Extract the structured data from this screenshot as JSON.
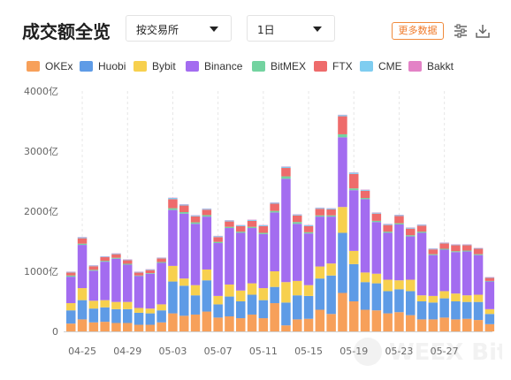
{
  "header": {
    "title": "成交额全览",
    "exchange_select": "按交易所",
    "period_select": "1日",
    "more_data_label": "更多数据"
  },
  "icons": {
    "settings": "sliders-icon",
    "download": "download-icon"
  },
  "watermark": "WEEX Bit",
  "colors": {
    "OKEx": "#f7a05a",
    "Huobi": "#5e9be6",
    "Bybit": "#f7d04e",
    "Binance": "#a36cf0",
    "BitMEX": "#73d3a0",
    "FTX": "#ee6b6b",
    "CME": "#7fcdf0",
    "Bakkt": "#e382c6"
  },
  "chart_data": {
    "type": "bar",
    "stacked": true,
    "ylim": [
      0,
      4000
    ],
    "y_ticks": [
      0,
      1000,
      2000,
      3000,
      4000
    ],
    "y_tick_labels": [
      "0",
      "1000亿",
      "2000亿",
      "3000亿",
      "4000亿"
    ],
    "x_tick_labels": [
      "04-25",
      "04-29",
      "05-03",
      "05-07",
      "05-11",
      "05-15",
      "05-19",
      "05-23",
      "05-27"
    ],
    "grid": "vertical-dashed",
    "legend_position": "top",
    "categories": [
      "04-24",
      "04-25",
      "04-26",
      "04-27",
      "04-28",
      "04-29",
      "04-30",
      "05-01",
      "05-02",
      "05-03",
      "05-04",
      "05-05",
      "05-06",
      "05-07",
      "05-08",
      "05-09",
      "05-10",
      "05-11",
      "05-12",
      "05-13",
      "05-14",
      "05-15",
      "05-16",
      "05-17",
      "05-18",
      "05-19",
      "05-20",
      "05-21",
      "05-22",
      "05-23",
      "05-24",
      "05-25",
      "05-26",
      "05-27",
      "05-28",
      "05-29",
      "05-30",
      "05-31"
    ],
    "series": [
      {
        "name": "OKEx",
        "values": [
          130,
          200,
          150,
          160,
          140,
          140,
          110,
          110,
          150,
          300,
          260,
          280,
          330,
          230,
          250,
          220,
          280,
          220,
          470,
          100,
          200,
          210,
          360,
          290,
          640,
          500,
          360,
          350,
          300,
          320,
          270,
          200,
          200,
          230,
          200,
          210,
          190,
          120
        ]
      },
      {
        "name": "Huobi",
        "values": [
          220,
          320,
          230,
          240,
          230,
          230,
          200,
          190,
          200,
          530,
          500,
          320,
          520,
          220,
          330,
          280,
          330,
          300,
          270,
          380,
          400,
          380,
          520,
          640,
          1000,
          620,
          460,
          450,
          370,
          380,
          400,
          300,
          280,
          320,
          300,
          280,
          300,
          170
        ]
      },
      {
        "name": "Bybit",
        "values": [
          120,
          200,
          130,
          120,
          120,
          120,
          80,
          80,
          100,
          260,
          120,
          170,
          180,
          140,
          200,
          180,
          190,
          200,
          260,
          340,
          240,
          180,
          200,
          200,
          430,
          220,
          160,
          160,
          190,
          150,
          190,
          100,
          110,
          120,
          130,
          110,
          120,
          80
        ]
      },
      {
        "name": "Binance",
        "values": [
          440,
          720,
          500,
          640,
          720,
          620,
          530,
          580,
          690,
          930,
          1080,
          1020,
          880,
          880,
          940,
          960,
          920,
          900,
          980,
          1720,
          950,
          860,
          830,
          780,
          1160,
          1010,
          1220,
          860,
          780,
          930,
          720,
          1040,
          680,
          690,
          690,
          730,
          660,
          460
        ]
      },
      {
        "name": "BitMEX",
        "values": [
          20,
          20,
          15,
          15,
          15,
          15,
          10,
          10,
          15,
          30,
          25,
          25,
          25,
          20,
          20,
          20,
          20,
          20,
          25,
          40,
          30,
          20,
          20,
          20,
          50,
          30,
          20,
          20,
          20,
          20,
          20,
          20,
          15,
          15,
          15,
          15,
          15,
          10
        ]
      },
      {
        "name": "FTX",
        "values": [
          50,
          90,
          60,
          60,
          60,
          60,
          50,
          50,
          60,
          150,
          110,
          100,
          90,
          80,
          90,
          90,
          100,
          110,
          120,
          140,
          110,
          100,
          110,
          100,
          300,
          240,
          120,
          120,
          110,
          120,
          110,
          100,
          80,
          90,
          100,
          90,
          90,
          50
        ]
      },
      {
        "name": "CME",
        "values": [
          10,
          15,
          10,
          10,
          10,
          10,
          10,
          10,
          10,
          20,
          15,
          15,
          15,
          15,
          15,
          15,
          15,
          15,
          15,
          20,
          15,
          15,
          15,
          15,
          20,
          20,
          15,
          15,
          15,
          15,
          15,
          15,
          10,
          10,
          10,
          10,
          10,
          10
        ]
      },
      {
        "name": "Bakkt",
        "values": [
          5,
          5,
          5,
          5,
          5,
          5,
          5,
          5,
          5,
          5,
          5,
          5,
          5,
          5,
          5,
          5,
          5,
          5,
          5,
          5,
          5,
          5,
          5,
          5,
          5,
          5,
          5,
          5,
          5,
          5,
          5,
          5,
          5,
          5,
          5,
          5,
          5,
          5
        ]
      }
    ]
  }
}
